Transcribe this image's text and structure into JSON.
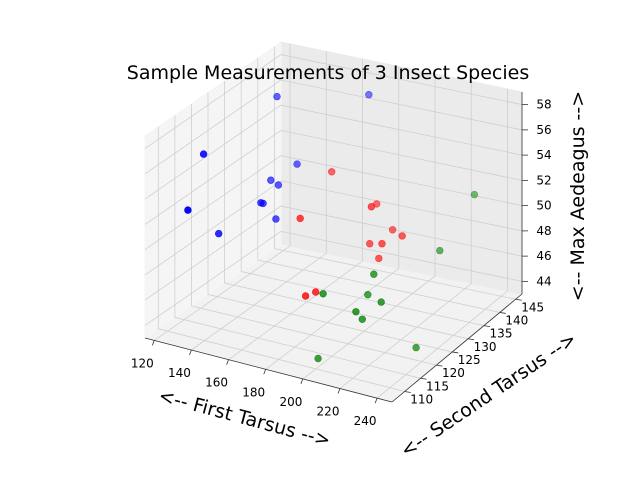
{
  "chart_data": {
    "type": "scatter3d",
    "title": "Sample Measurements of 3 Insect Species",
    "xlabel": "<-- First Tarsus -->",
    "ylabel": "<-- Second Tarsus -->",
    "zlabel": "<-- Max Aedeagus -->",
    "xticks": [
      "120",
      "140",
      "160",
      "180",
      "200",
      "220",
      "240"
    ],
    "yticks": [
      "110",
      "115",
      "120",
      "125",
      "130",
      "135",
      "140",
      "145"
    ],
    "zticks": [
      "44",
      "46",
      "48",
      "50",
      "52",
      "54",
      "56",
      "58"
    ],
    "xlim": [
      115,
      248
    ],
    "ylim": [
      106,
      147
    ],
    "zlim": [
      43,
      59
    ],
    "grid": true,
    "series": [
      {
        "color": "#0000ff",
        "points": [
          [
            127,
            117,
            56
          ],
          [
            128,
            121,
            49
          ],
          [
            131,
            110,
            53
          ],
          [
            131,
            137,
            57
          ],
          [
            133,
            134,
            51
          ],
          [
            136,
            130,
            50
          ],
          [
            139,
            133,
            51
          ],
          [
            142,
            137,
            52
          ],
          [
            142,
            126,
            51
          ],
          [
            143,
            130,
            49
          ],
          [
            176,
            140,
            58
          ]
        ]
      },
      {
        "color": "#ff0000",
        "points": [
          [
            161,
            137,
            52
          ],
          [
            167,
            124,
            51
          ],
          [
            184,
            116,
            47
          ],
          [
            186,
            118,
            47
          ],
          [
            196,
            129,
            49
          ],
          [
            191,
            134,
            51
          ],
          [
            201,
            129,
            48
          ],
          [
            208,
            126,
            50
          ],
          [
            205,
            131,
            50
          ],
          [
            204,
            125,
            53
          ],
          [
            219,
            126,
            51
          ]
        ]
      },
      {
        "color": "#008000",
        "points": [
          [
            182,
            121,
            41
          ],
          [
            190,
            118,
            47
          ],
          [
            209,
            121,
            47
          ],
          [
            214,
            120,
            49
          ],
          [
            213,
            115,
            47
          ],
          [
            225,
            116,
            48
          ],
          [
            236,
            128,
            50
          ],
          [
            248,
            132,
            54
          ],
          [
            237,
            120,
            44
          ],
          [
            213,
            117,
            46
          ]
        ]
      }
    ]
  }
}
